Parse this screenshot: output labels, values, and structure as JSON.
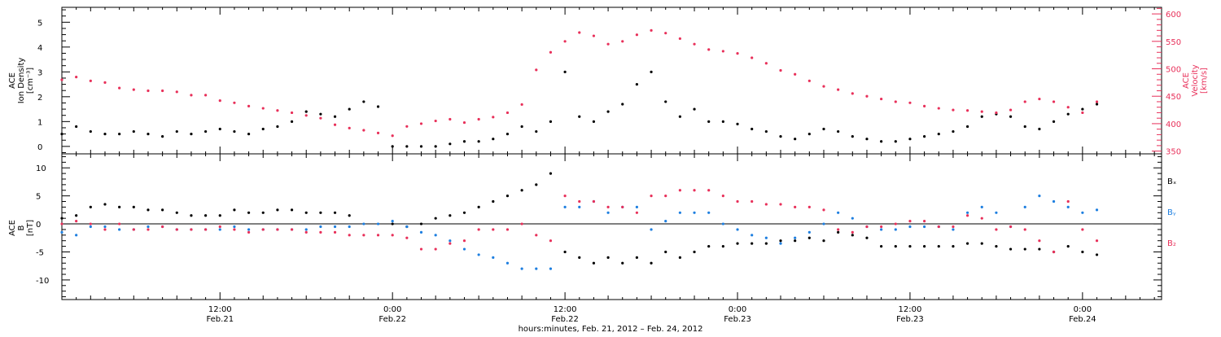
{
  "colors": {
    "black": "#000000",
    "pink": "#e8305a",
    "blue": "#1e7fe0"
  },
  "xaxis": {
    "title": "hours:minutes, Feb. 21, 2012 – Feb. 24, 2012",
    "ticks": [
      {
        "hour": 12,
        "time": "12:00",
        "date": "Feb.21"
      },
      {
        "hour": 24,
        "time": "0:00",
        "date": "Feb.22"
      },
      {
        "hour": 36,
        "time": "12:00",
        "date": "Feb.22"
      },
      {
        "hour": 48,
        "time": "0:00",
        "date": "Feb.23"
      },
      {
        "hour": 60,
        "time": "12:00",
        "date": "Feb.23"
      },
      {
        "hour": 72,
        "time": "0:00",
        "date": "Feb.24"
      }
    ]
  },
  "chart_data": [
    {
      "type": "scatter",
      "panel": "density-velocity",
      "xlim_hours": [
        1,
        77.5
      ],
      "left_axis": {
        "label_lines": [
          "ACE",
          "Ion Density",
          "[cm⁻³]"
        ],
        "ylim": [
          -0.3,
          5.6
        ],
        "ticks": [
          0,
          1,
          2,
          3,
          4,
          5
        ]
      },
      "right_axis": {
        "label_lines": [
          "ACE",
          "Velocity",
          "[km/s]"
        ],
        "ylim": [
          345,
          612
        ],
        "ticks": [
          350,
          400,
          450,
          500,
          550,
          600
        ]
      },
      "series": [
        {
          "key": "density",
          "color": "#000000",
          "axis": "left",
          "x": [
            1,
            2,
            3,
            4,
            5,
            6,
            7,
            8,
            9,
            10,
            11,
            12,
            13,
            14,
            15,
            16,
            17,
            18,
            19,
            20,
            21,
            22,
            23,
            24,
            25,
            26,
            27,
            28,
            29,
            30,
            31,
            32,
            33,
            34,
            35,
            36,
            37,
            38,
            39,
            40,
            41,
            42,
            43,
            44,
            45,
            46,
            47,
            48,
            49,
            50,
            51,
            52,
            53,
            54,
            55,
            56,
            57,
            58,
            59,
            60,
            61,
            62,
            63,
            64,
            65,
            66,
            67,
            68,
            69,
            70,
            71,
            72,
            73
          ],
          "y": [
            0.5,
            0.8,
            0.6,
            0.5,
            0.5,
            0.6,
            0.5,
            0.4,
            0.6,
            0.5,
            0.6,
            0.7,
            0.6,
            0.5,
            0.7,
            0.8,
            1.0,
            1.4,
            1.3,
            1.2,
            1.5,
            1.8,
            1.6,
            0.0,
            0.0,
            0.0,
            0.0,
            0.1,
            0.2,
            0.2,
            0.3,
            0.5,
            0.8,
            0.6,
            1.0,
            3.0,
            1.2,
            1.0,
            1.4,
            1.7,
            2.5,
            3.0,
            1.8,
            1.2,
            1.5,
            1.0,
            1.0,
            0.9,
            0.7,
            0.6,
            0.4,
            0.3,
            0.5,
            0.7,
            0.6,
            0.4,
            0.3,
            0.2,
            0.2,
            0.3,
            0.4,
            0.5,
            0.6,
            0.8,
            1.2,
            1.3,
            1.2,
            0.8,
            0.7,
            1.0,
            1.3,
            1.5,
            1.7
          ]
        },
        {
          "key": "velocity",
          "color": "#e8305a",
          "axis": "right",
          "x": [
            1,
            2,
            3,
            4,
            5,
            6,
            7,
            8,
            9,
            10,
            11,
            12,
            13,
            14,
            15,
            16,
            17,
            18,
            19,
            20,
            21,
            22,
            23,
            24,
            25,
            26,
            27,
            28,
            29,
            30,
            31,
            32,
            33,
            34,
            35,
            36,
            37,
            38,
            39,
            40,
            41,
            42,
            43,
            44,
            45,
            46,
            47,
            48,
            49,
            50,
            51,
            52,
            53,
            54,
            55,
            56,
            57,
            58,
            59,
            60,
            61,
            62,
            63,
            64,
            65,
            66,
            67,
            68,
            69,
            70,
            71,
            72,
            73
          ],
          "y": [
            480,
            485,
            478,
            475,
            465,
            462,
            460,
            460,
            458,
            452,
            452,
            442,
            438,
            432,
            428,
            424,
            420,
            415,
            410,
            398,
            392,
            388,
            383,
            378,
            395,
            400,
            405,
            408,
            402,
            408,
            412,
            420,
            435,
            498,
            530,
            550,
            566,
            560,
            545,
            550,
            562,
            570,
            565,
            555,
            545,
            535,
            532,
            528,
            520,
            510,
            497,
            490,
            478,
            468,
            462,
            455,
            450,
            445,
            440,
            438,
            432,
            428,
            425,
            424,
            422,
            420,
            425,
            440,
            445,
            440,
            430,
            420,
            440
          ]
        }
      ]
    },
    {
      "type": "scatter",
      "panel": "magnetic-field",
      "xlim_hours": [
        1,
        77.5
      ],
      "left_axis": {
        "label_lines": [
          "ACE",
          "B",
          "[nT]"
        ],
        "ylim": [
          -13.5,
          12.5
        ],
        "ticks": [
          -10,
          -5,
          0,
          5,
          10
        ]
      },
      "zero_line": 0,
      "legend": [
        "Bₓ",
        "Bᵧ",
        "B₂"
      ],
      "series": [
        {
          "key": "Bx",
          "color": "#000000",
          "x": [
            1,
            2,
            3,
            4,
            5,
            6,
            7,
            8,
            9,
            10,
            11,
            12,
            13,
            14,
            15,
            16,
            17,
            18,
            19,
            20,
            21,
            22,
            23,
            24,
            25,
            26,
            27,
            28,
            29,
            30,
            31,
            32,
            33,
            34,
            35,
            36,
            37,
            38,
            39,
            40,
            41,
            42,
            43,
            44,
            45,
            46,
            47,
            48,
            49,
            50,
            51,
            52,
            53,
            54,
            55,
            56,
            57,
            58,
            59,
            60,
            61,
            62,
            63,
            64,
            65,
            66,
            67,
            68,
            69,
            70,
            71,
            72,
            73
          ],
          "y": [
            1,
            1.5,
            3,
            3.5,
            3,
            3,
            2.5,
            2.5,
            2,
            1.5,
            1.5,
            1.5,
            2.5,
            2,
            2,
            2.5,
            2.5,
            2,
            2,
            2,
            1.5,
            null,
            null,
            0,
            -0.5,
            0,
            1,
            1.5,
            2,
            3,
            4,
            5,
            6,
            7,
            9,
            -5,
            -6,
            -7,
            -6,
            -7,
            -6,
            -7,
            -5,
            -6,
            -5,
            -4,
            -4,
            -3.5,
            -3.5,
            -3.5,
            -3,
            -3,
            -2.5,
            -3,
            -1.5,
            -2,
            -2.5,
            -4,
            -4,
            -4,
            -4,
            -4,
            -4,
            -3.5,
            -3.5,
            -4,
            -4.5,
            -4.5,
            -4.5,
            -5,
            -4,
            -5,
            -5.5
          ]
        },
        {
          "key": "By",
          "color": "#1e7fe0",
          "x": [
            1,
            2,
            3,
            4,
            5,
            6,
            7,
            8,
            9,
            10,
            11,
            12,
            13,
            14,
            15,
            16,
            17,
            18,
            19,
            20,
            21,
            22,
            23,
            24,
            25,
            26,
            27,
            28,
            29,
            30,
            31,
            32,
            33,
            34,
            35,
            36,
            37,
            38,
            39,
            40,
            41,
            42,
            43,
            44,
            45,
            46,
            47,
            48,
            49,
            50,
            51,
            52,
            53,
            54,
            55,
            56,
            57,
            58,
            59,
            60,
            61,
            62,
            63,
            64,
            65,
            66,
            67,
            68,
            69,
            70,
            71,
            72,
            73
          ],
          "y": [
            -1.5,
            -2,
            -0.5,
            -0.5,
            -1,
            -1,
            -0.5,
            -0.5,
            -1,
            -1,
            -1,
            -1,
            -0.5,
            -1,
            -1,
            -1,
            -1,
            -1,
            -0.5,
            -0.5,
            -0.5,
            0,
            0,
            0.5,
            -0.5,
            -1.5,
            -2,
            -3,
            -4.5,
            -5.5,
            -6,
            -7,
            -8,
            -8,
            -8,
            3,
            3,
            4,
            2,
            3,
            3,
            -1,
            0.5,
            2,
            2,
            2,
            0,
            -1,
            -2,
            -2.5,
            -3.5,
            -2.5,
            -1.5,
            0,
            2,
            1,
            -0.5,
            -1,
            -1,
            -0.5,
            -0.5,
            -0.5,
            -1,
            2,
            3,
            2,
            -0.5,
            3,
            5,
            4,
            3,
            2,
            2.5
          ]
        },
        {
          "key": "Bz",
          "color": "#e8305a",
          "x": [
            1,
            2,
            3,
            4,
            5,
            6,
            7,
            8,
            9,
            10,
            11,
            12,
            13,
            14,
            15,
            16,
            17,
            18,
            19,
            20,
            21,
            22,
            23,
            24,
            25,
            26,
            27,
            28,
            29,
            30,
            31,
            32,
            33,
            34,
            35,
            36,
            37,
            38,
            39,
            40,
            41,
            42,
            43,
            44,
            45,
            46,
            47,
            48,
            49,
            50,
            51,
            52,
            53,
            54,
            55,
            56,
            57,
            58,
            59,
            60,
            61,
            62,
            63,
            64,
            65,
            66,
            67,
            68,
            69,
            70,
            71,
            72,
            73
          ],
          "y": [
            0,
            0.5,
            0,
            -1,
            0,
            -1,
            -1,
            -0.5,
            -1,
            -1,
            -1,
            -0.5,
            -1,
            -1.5,
            -1,
            -1,
            -1,
            -1.5,
            -1.5,
            -1.5,
            -2,
            -2,
            -2,
            -2,
            -2.5,
            -4.5,
            -4.5,
            -3.5,
            -3,
            -1,
            -1,
            -1,
            0,
            -2,
            -3,
            5,
            4,
            4,
            3,
            3,
            2,
            5,
            5,
            6,
            6,
            6,
            5,
            4,
            4,
            3.5,
            3.5,
            3,
            3,
            2.5,
            -1,
            -1.5,
            -0.5,
            -0.5,
            0,
            0.5,
            0.5,
            -0.5,
            -0.5,
            1.5,
            1,
            -1,
            -0.5,
            -1,
            -3,
            -5,
            4,
            -1,
            -3
          ]
        }
      ]
    }
  ]
}
